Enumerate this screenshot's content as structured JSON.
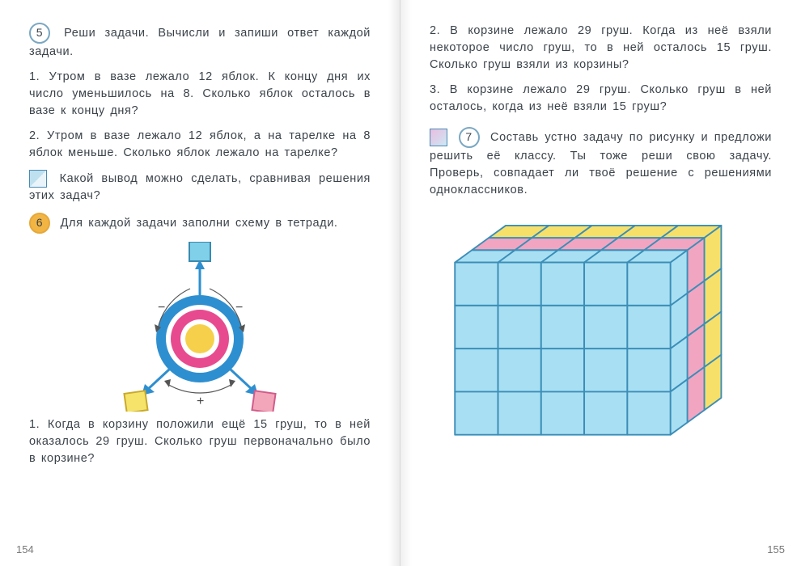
{
  "left": {
    "page_number": "154",
    "task5": {
      "num": "5",
      "lead": "Реши задачи. Вычисли и запиши ответ каждой задачи.",
      "p1": "1. Утром в вазе лежало 12 яблок. К концу дня их число уменьшилось на 8. Сколько яблок осталось в вазе к концу дня?",
      "p2": "2. Утром в вазе лежало 12 яблок, а на тарелке на 8 яблок меньше. Сколько яблок лежало на тарелке?"
    },
    "conclusion": "Какой вывод можно сделать, сравнивая решения этих задач?",
    "task6": {
      "num": "6",
      "lead": "Для каждой задачи заполни схему в тетради.",
      "p1": "1. Когда в корзину положили ещё 15 груш, то в ней оказалось 29 груш. Сколько груш первоначально было в корзине?"
    },
    "scheme": {
      "ring_outer": "#2e8fd0",
      "ring_mid": "#e84a8f",
      "ring_inner": "#f6d04a",
      "box_top": "#7fd0e8",
      "box_top_border": "#3a8ab0",
      "box_left": "#f5e36a",
      "box_left_border": "#c9a92b",
      "box_right": "#f3a5b9",
      "box_right_border": "#d05c8a",
      "arrow": "#2e8fd0",
      "minus": "−",
      "plus": "+"
    }
  },
  "right": {
    "page_number": "155",
    "p2": "2. В корзине лежало 29 груш. Когда из неё взяли некоторое число груш, то в ней осталось 15 груш. Сколько груш взяли из корзины?",
    "p3": "3. В корзине лежало 29 груш. Сколько груш в ней осталось, когда из неё взяли 15 груш?",
    "task7": {
      "num": "7",
      "lead": "Составь устно задачу по рисунку и предложи решить её классу. Ты тоже реши свою задачу. Проверь, совпадает ли твоё решение с решениями одноклассников."
    },
    "cube": {
      "cols": 5,
      "rows": 4,
      "depth": 3,
      "line_color": "#3a8eb8",
      "front_color": "#a9dff2",
      "layer_top_1": "#f7e06a",
      "layer_top_2": "#f2a5c1",
      "layer_top_3": "#a9dff2",
      "side_color": "#f7e06a",
      "side_color_2": "#f2a5c1",
      "side_color_3": "#a9dff2"
    }
  }
}
